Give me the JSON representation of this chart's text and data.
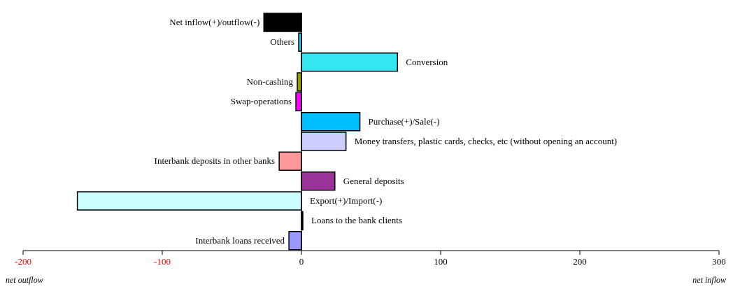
{
  "chart_data": {
    "type": "bar",
    "orientation": "horizontal",
    "categories": [
      "Net inflow(+)/outflow(-)",
      "Others",
      "Conversion",
      "Non-cashing",
      "Swap-operations",
      "Purchase(+)/Sale(-)",
      "Money transfers, plastic cards, checks, etc (without opening an account)",
      "Interbank deposits in other banks",
      "General deposits",
      "Export(+)/Import(-)",
      "Loans to the bank clients",
      "Interbank loans received"
    ],
    "values": [
      -27,
      -2,
      69,
      -3,
      -4,
      42,
      32,
      -16,
      24,
      -161,
      1,
      -9
    ],
    "colors": [
      "#000000",
      "#33ccff",
      "#33e6f0",
      "#999900",
      "#ff00ff",
      "#00bfff",
      "#ccccff",
      "#ff9999",
      "#993399",
      "#ccffff",
      "#000000",
      "#9999ff"
    ],
    "xlim": [
      -200,
      300
    ],
    "xticks": [
      -200,
      -100,
      0,
      100,
      200,
      300
    ],
    "ref_lines": [
      {
        "axis": "x",
        "value": 0,
        "color": "#000000"
      }
    ],
    "grid": false,
    "legend": false,
    "annotations": [
      "net outflow",
      "net inflow"
    ]
  }
}
